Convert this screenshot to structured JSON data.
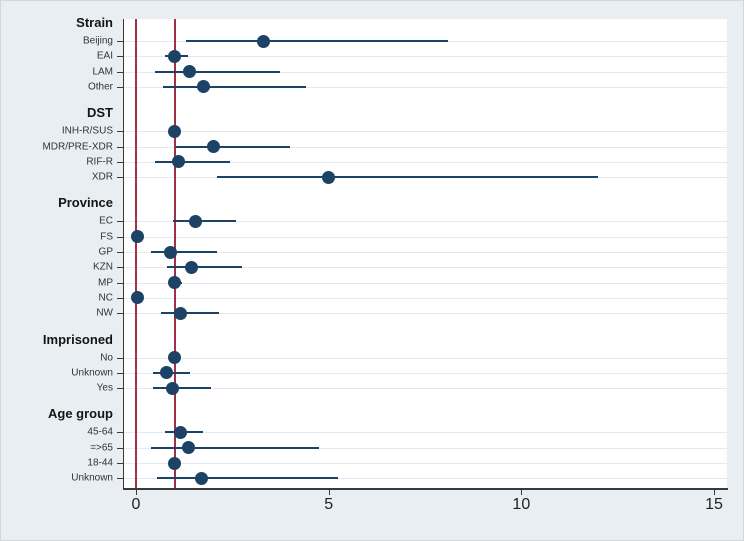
{
  "figure": {
    "kind": "forest-plot",
    "x_axis": {
      "ticks": [
        "0",
        "5",
        "10",
        "15"
      ],
      "min": -0.31,
      "max": 15.35
    }
  },
  "colors": {
    "background": "#e8eef2",
    "plot_background": "#ffffff",
    "gridline": "#e2eaf1",
    "axis": "#3a3a3a",
    "marker": "#1c4366",
    "reference_line": "#9e3148"
  },
  "chart_data": {
    "type": "scatter",
    "subtype": "forest",
    "title": "",
    "xlabel": "",
    "ylabel": "",
    "xlim": [
      -0.31,
      15.35
    ],
    "x_ticks": [
      0,
      5,
      10,
      15
    ],
    "grid": "horizontal-per-row",
    "reference_lines": [
      0,
      1
    ],
    "groups": [
      {
        "label": "Strain",
        "items": [
          {
            "label": "Beijing",
            "estimate": 3.3,
            "lo": 1.3,
            "hi": 8.1
          },
          {
            "label": "EAI",
            "estimate": 1.0,
            "lo": 0.75,
            "hi": 1.35
          },
          {
            "label": "LAM",
            "estimate": 1.4,
            "lo": 0.5,
            "hi": 3.75
          },
          {
            "label": "Other",
            "estimate": 1.75,
            "lo": 0.7,
            "hi": 4.4
          }
        ]
      },
      {
        "label": "DST",
        "items": [
          {
            "label": "INH-R/SUS",
            "estimate": 1.0,
            "lo": 1.0,
            "hi": 1.0
          },
          {
            "label": "MDR/PRE-XDR",
            "estimate": 2.0,
            "lo": 1.05,
            "hi": 4.0
          },
          {
            "label": "RIF-R",
            "estimate": 1.1,
            "lo": 0.5,
            "hi": 2.45
          },
          {
            "label": "XDR",
            "estimate": 5.0,
            "lo": 2.1,
            "hi": 12.0
          }
        ]
      },
      {
        "label": "Province",
        "items": [
          {
            "label": "EC",
            "estimate": 1.55,
            "lo": 0.95,
            "hi": 2.6
          },
          {
            "label": "FS",
            "estimate": 0.04,
            "lo": 0.04,
            "hi": 0.04
          },
          {
            "label": "GP",
            "estimate": 0.9,
            "lo": 0.4,
            "hi": 2.1
          },
          {
            "label": "KZN",
            "estimate": 1.45,
            "lo": 0.8,
            "hi": 2.75
          },
          {
            "label": "MP",
            "estimate": 1.0,
            "lo": 0.85,
            "hi": 1.2
          },
          {
            "label": "NC",
            "estimate": 0.04,
            "lo": 0.04,
            "hi": 0.04
          },
          {
            "label": "NW",
            "estimate": 1.15,
            "lo": 0.65,
            "hi": 2.15
          }
        ]
      },
      {
        "label": "Imprisoned",
        "items": [
          {
            "label": "No",
            "estimate": 1.0,
            "lo": 1.0,
            "hi": 1.0
          },
          {
            "label": "Unknown",
            "estimate": 0.8,
            "lo": 0.45,
            "hi": 1.4
          },
          {
            "label": "Yes",
            "estimate": 0.95,
            "lo": 0.45,
            "hi": 1.95
          }
        ]
      },
      {
        "label": "Age group",
        "items": [
          {
            "label": "45-64",
            "estimate": 1.15,
            "lo": 0.75,
            "hi": 1.75
          },
          {
            "label": "=>65",
            "estimate": 1.35,
            "lo": 0.4,
            "hi": 4.75
          },
          {
            "label": "18-44",
            "estimate": 1.0,
            "lo": 1.0,
            "hi": 1.0
          },
          {
            "label": "Unknown",
            "estimate": 1.7,
            "lo": 0.55,
            "hi": 5.25
          }
        ]
      }
    ]
  }
}
